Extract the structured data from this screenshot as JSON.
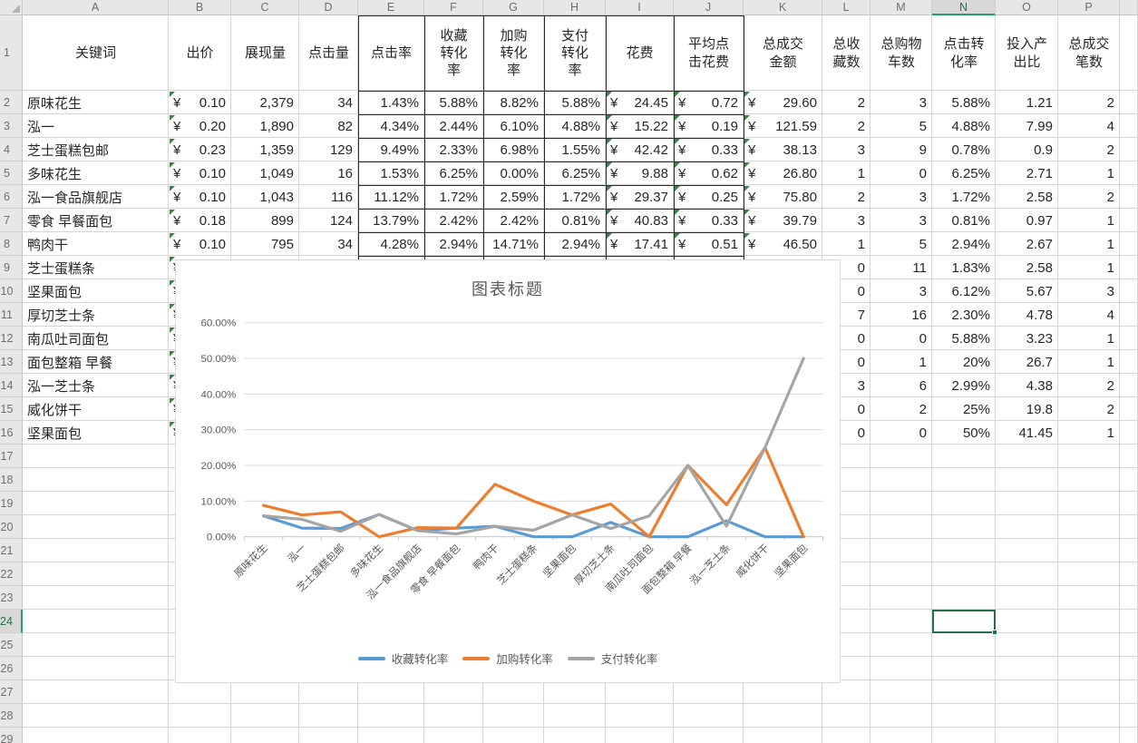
{
  "sheet": {
    "column_letters": [
      "A",
      "B",
      "C",
      "D",
      "E",
      "F",
      "G",
      "H",
      "I",
      "J",
      "K",
      "L",
      "M",
      "N",
      "O",
      "P"
    ],
    "first_row_number": 1,
    "last_row_number": 29,
    "currency_symbol": "¥",
    "selection": {
      "column": "N",
      "row": 24
    }
  },
  "table": {
    "headers": {
      "A": "关键词",
      "B": "出价",
      "C": "展现量",
      "D": "点击量",
      "E": "点击率",
      "F": "收藏\n转化\n率",
      "G": "加购\n转化\n率",
      "H": "支付\n转化\n率",
      "I": "花费",
      "J": "平均点\n击花费",
      "K": "总成交\n金额",
      "L": "总收\n藏数",
      "M": "总购物\n车数",
      "N": "点击转\n化率",
      "O": "投入产\n出比",
      "P": "总成交\n笔数"
    },
    "rows": [
      {
        "row": 2,
        "A": "原味花生",
        "B": "0.10",
        "C": "2,379",
        "D": "34",
        "E": "1.43%",
        "F": "5.88%",
        "G": "8.82%",
        "H": "5.88%",
        "I": "24.45",
        "J": "0.72",
        "K": "29.60",
        "L": "2",
        "M": "3",
        "N": "5.88%",
        "O": "1.21",
        "P": "2",
        "err": [
          "B",
          "I",
          "J",
          "K"
        ]
      },
      {
        "row": 3,
        "A": "泓一",
        "B": "0.20",
        "C": "1,890",
        "D": "82",
        "E": "4.34%",
        "F": "2.44%",
        "G": "6.10%",
        "H": "4.88%",
        "I": "15.22",
        "J": "0.19",
        "K": "121.59",
        "L": "2",
        "M": "5",
        "N": "4.88%",
        "O": "7.99",
        "P": "4",
        "err": [
          "B",
          "I",
          "J",
          "K"
        ]
      },
      {
        "row": 4,
        "A": "芝士蛋糕包邮",
        "B": "0.23",
        "C": "1,359",
        "D": "129",
        "E": "9.49%",
        "F": "2.33%",
        "G": "6.98%",
        "H": "1.55%",
        "I": "42.42",
        "J": "0.33",
        "K": "38.13",
        "L": "3",
        "M": "9",
        "N": "0.78%",
        "O": "0.9",
        "P": "2",
        "err": [
          "B",
          "I",
          "J",
          "K"
        ]
      },
      {
        "row": 5,
        "A": "多味花生",
        "B": "0.10",
        "C": "1,049",
        "D": "16",
        "E": "1.53%",
        "F": "6.25%",
        "G": "0.00%",
        "H": "6.25%",
        "I": "9.88",
        "J": "0.62",
        "K": "26.80",
        "L": "1",
        "M": "0",
        "N": "6.25%",
        "O": "2.71",
        "P": "1",
        "err": [
          "B",
          "I",
          "J",
          "K"
        ]
      },
      {
        "row": 6,
        "A": "泓一食品旗舰店",
        "B": "0.10",
        "C": "1,043",
        "D": "116",
        "E": "11.12%",
        "F": "1.72%",
        "G": "2.59%",
        "H": "1.72%",
        "I": "29.37",
        "J": "0.25",
        "K": "75.80",
        "L": "2",
        "M": "3",
        "N": "1.72%",
        "O": "2.58",
        "P": "2",
        "err": [
          "B",
          "I",
          "J",
          "K"
        ]
      },
      {
        "row": 7,
        "A": "零食 早餐面包",
        "B": "0.18",
        "C": "899",
        "D": "124",
        "E": "13.79%",
        "F": "2.42%",
        "G": "2.42%",
        "H": "0.81%",
        "I": "40.83",
        "J": "0.33",
        "K": "39.79",
        "L": "3",
        "M": "3",
        "N": "0.81%",
        "O": "0.97",
        "P": "1",
        "err": [
          "B",
          "I",
          "J",
          "K"
        ]
      },
      {
        "row": 8,
        "A": "鸭肉干",
        "B": "0.10",
        "C": "795",
        "D": "34",
        "E": "4.28%",
        "F": "2.94%",
        "G": "14.71%",
        "H": "2.94%",
        "I": "17.41",
        "J": "0.51",
        "K": "46.50",
        "L": "1",
        "M": "5",
        "N": "2.94%",
        "O": "2.67",
        "P": "1",
        "err": [
          "B",
          "I",
          "J",
          "K"
        ]
      },
      {
        "row": 9,
        "A": "芝士蛋糕条",
        "B": "",
        "L": "0",
        "M": "11",
        "N": "1.83%",
        "O": "2.58",
        "P": "1",
        "err": [
          "B"
        ]
      },
      {
        "row": 10,
        "A": "坚果面包",
        "B": "",
        "L": "0",
        "M": "3",
        "N": "6.12%",
        "O": "5.67",
        "P": "3",
        "err": [
          "B"
        ]
      },
      {
        "row": 11,
        "A": "厚切芝士条",
        "B": "",
        "L": "7",
        "M": "16",
        "N": "2.30%",
        "O": "4.78",
        "P": "4",
        "err": [
          "B"
        ]
      },
      {
        "row": 12,
        "A": "南瓜吐司面包",
        "B": "",
        "L": "0",
        "M": "0",
        "N": "5.88%",
        "O": "3.23",
        "P": "1",
        "err": [
          "B"
        ]
      },
      {
        "row": 13,
        "A": "面包整箱 早餐",
        "B": "",
        "L": "0",
        "M": "1",
        "N": "20%",
        "O": "26.7",
        "P": "1",
        "err": [
          "B"
        ]
      },
      {
        "row": 14,
        "A": "泓一芝士条",
        "B": "",
        "L": "3",
        "M": "6",
        "N": "2.99%",
        "O": "4.38",
        "P": "2",
        "err": [
          "B"
        ]
      },
      {
        "row": 15,
        "A": "威化饼干",
        "B": "",
        "L": "0",
        "M": "2",
        "N": "25%",
        "O": "19.8",
        "P": "2",
        "err": [
          "B"
        ]
      },
      {
        "row": 16,
        "A": "坚果面包",
        "B": "",
        "L": "0",
        "M": "0",
        "N": "50%",
        "O": "41.45",
        "P": "1",
        "err": [
          "B"
        ]
      }
    ]
  },
  "chart_data": {
    "type": "line",
    "title": "图表标题",
    "categories": [
      "原味花生",
      "泓一",
      "芝士蛋糕包邮",
      "多味花生",
      "泓一食品旗舰店",
      "零食 早餐面包",
      "鸭肉干",
      "芝士蛋糕条",
      "坚果面包",
      "厚切芝士条",
      "南瓜吐司面包",
      "面包整箱 早餐",
      "泓一芝士条",
      "威化饼干",
      "坚果面包"
    ],
    "series": [
      {
        "name": "收藏转化率",
        "color": "#5B9BD5",
        "values": [
          5.88,
          2.44,
          2.33,
          6.25,
          1.72,
          2.42,
          2.94,
          0,
          0,
          4.02,
          0,
          0,
          4.48,
          0,
          0
        ]
      },
      {
        "name": "加购转化率",
        "color": "#ED7D31",
        "values": [
          8.82,
          6.1,
          6.98,
          0,
          2.59,
          2.42,
          14.71,
          10,
          6.12,
          9.2,
          0,
          20,
          8.96,
          25,
          0
        ]
      },
      {
        "name": "支付转化率",
        "color": "#A5A5A5",
        "values": [
          5.88,
          4.88,
          1.55,
          6.25,
          1.72,
          0.81,
          2.94,
          1.83,
          6.12,
          2.3,
          5.88,
          20,
          2.99,
          25,
          50
        ]
      }
    ],
    "ylim": [
      0,
      60
    ],
    "ytick_labels": [
      "0.00%",
      "10.00%",
      "20.00%",
      "30.00%",
      "40.00%",
      "50.00%",
      "60.00%"
    ],
    "grid": "horizontal",
    "legend_position": "bottom",
    "xlabel": "",
    "ylabel": ""
  },
  "colors": {
    "selection_green": "#217346",
    "header_highlight_green": "#21a366",
    "gridline": "#d6d6d6",
    "table_border": "#2a2a2a",
    "chart_text": "#595959",
    "error_marker_green": "#2f8a3d"
  }
}
